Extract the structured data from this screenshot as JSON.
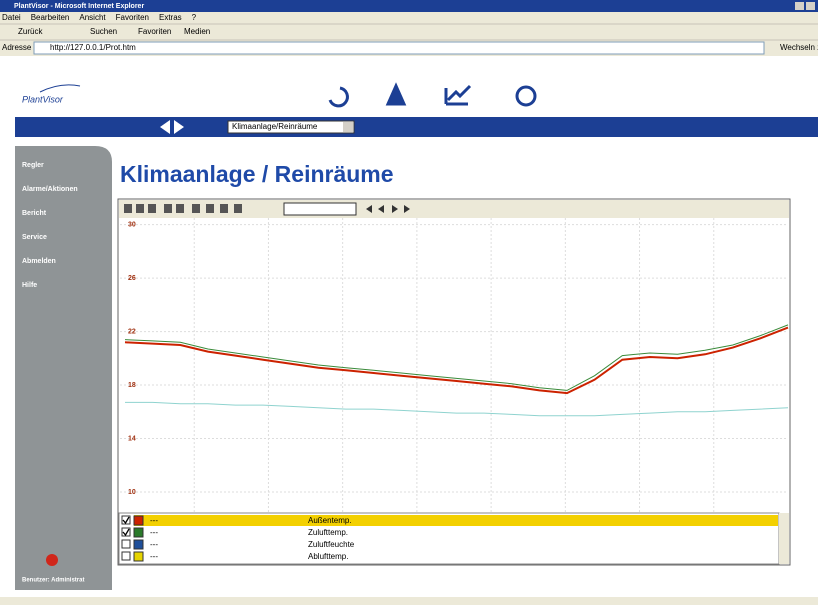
{
  "browser": {
    "title": "PlantVisor - Microsoft Internet Explorer",
    "menu": [
      "Datei",
      "Bearbeiten",
      "Ansicht",
      "Favoriten",
      "Extras",
      "?"
    ],
    "toolbar": [
      "Zurück",
      "Suchen",
      "Favoriten",
      "Medien"
    ],
    "address_label": "Adresse",
    "url": "http://127.0.0.1/Prot.htm",
    "go": "Wechseln zu"
  },
  "app": {
    "logo": "PlantVisor",
    "selector": "Klimaanlage/Reinräume",
    "sidebar": [
      "Regler",
      "Alarme/Aktionen",
      "Bericht",
      "Service",
      "Abmelden",
      "Hilfe"
    ],
    "user": "Benutzer: Administrat",
    "heading": "Klimaanlage / Reinräume"
  },
  "chart": {
    "type": "line",
    "ylim": [
      8.5,
      30.5
    ],
    "yticks": [
      30,
      26,
      22,
      18,
      14,
      10
    ],
    "grid": true,
    "series": [
      {
        "color": "#8fd3cf",
        "values": [
          16.7,
          16.7,
          16.6,
          16.6,
          16.5,
          16.5,
          16.4,
          16.3,
          16.2,
          16.2,
          16.1,
          16.0,
          15.9,
          15.9,
          15.8,
          15.7,
          15.7,
          15.7,
          15.8,
          15.9,
          16.0,
          16.0,
          16.1,
          16.2,
          16.3
        ]
      },
      {
        "color": "#3a8a3a",
        "values": [
          21.4,
          21.3,
          21.2,
          20.7,
          20.4,
          20.1,
          19.8,
          19.5,
          19.3,
          19.1,
          18.9,
          18.7,
          18.5,
          18.3,
          18.1,
          17.8,
          17.6,
          18.7,
          20.2,
          20.4,
          20.3,
          20.6,
          21.0,
          21.7,
          22.5
        ]
      },
      {
        "color": "#cc2200",
        "values": [
          21.2,
          21.1,
          21.0,
          20.5,
          20.2,
          19.9,
          19.6,
          19.3,
          19.1,
          18.9,
          18.7,
          18.5,
          18.3,
          18.1,
          17.9,
          17.6,
          17.4,
          18.4,
          19.9,
          20.1,
          20.0,
          20.3,
          20.8,
          21.5,
          22.3
        ]
      }
    ],
    "legend": [
      {
        "name": "Außentemp.",
        "color": "#cc2200",
        "checked": true,
        "reading": "---"
      },
      {
        "name": "Zulufttemp.",
        "color": "#2a7a2a",
        "checked": true,
        "reading": "---"
      },
      {
        "name": "Zuluftfeuchte",
        "color": "#1f4f9a",
        "checked": false,
        "reading": "---"
      },
      {
        "name": "Ablufttemp.",
        "color": "#e6d400",
        "checked": false,
        "reading": "---"
      }
    ],
    "legend_selected": 0
  }
}
